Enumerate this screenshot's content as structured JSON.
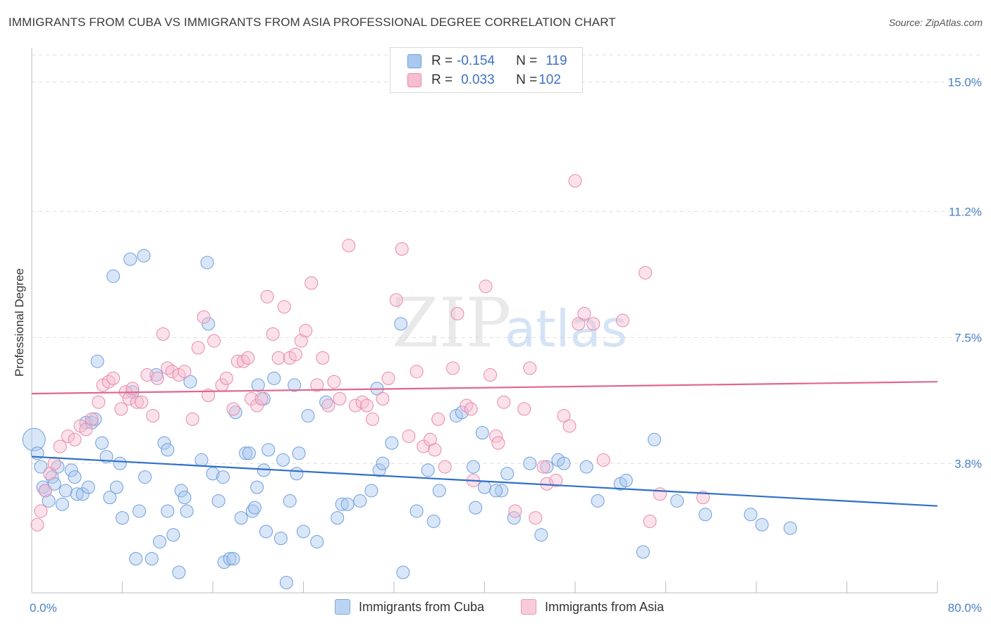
{
  "title": "IMMIGRANTS FROM CUBA VS IMMIGRANTS FROM ASIA PROFESSIONAL DEGREE CORRELATION CHART",
  "source": "Source: ZipAtlas.com",
  "watermark": {
    "zip": "ZIP",
    "atlas": "atlas"
  },
  "legend": {
    "rows": [
      {
        "r_label": "R =",
        "r_value": "-0.154",
        "n_label": "N =",
        "n_value": "119",
        "color": "#a9c8f0",
        "border": "#6f9fdc"
      },
      {
        "r_label": "R =",
        "r_value": "0.033",
        "n_label": "N =",
        "n_value": "102",
        "color": "#f7bdd0",
        "border": "#e88aaa"
      }
    ]
  },
  "bottom_legend": [
    {
      "label": "Immigrants from Cuba",
      "color": "#bcd4f4",
      "border": "#7ea6dd"
    },
    {
      "label": "Immigrants from Asia",
      "color": "#f9cbd9",
      "border": "#e89ab3"
    }
  ],
  "chart_data": {
    "type": "scatter",
    "title": "IMMIGRANTS FROM CUBA VS IMMIGRANTS FROM ASIA PROFESSIONAL DEGREE CORRELATION CHART",
    "xlabel": "",
    "ylabel": "Professional Degree",
    "xlim": [
      0,
      80
    ],
    "ylim": [
      0,
      15.8
    ],
    "x_tick_labels": [
      "0.0%",
      "80.0%"
    ],
    "y_ticks": [
      3.8,
      7.5,
      11.2,
      15.0
    ],
    "y_tick_labels": [
      "3.8%",
      "7.5%",
      "11.2%",
      "15.0%"
    ],
    "grid": true,
    "series": [
      {
        "name": "Immigrants from Cuba",
        "color": "#a9c8f0",
        "edge": "#6f9fdc",
        "trend": {
          "x": [
            0,
            80
          ],
          "y": [
            4.0,
            2.55
          ],
          "color": "#2f6fc9"
        },
        "points": [
          [
            0.2,
            4.5
          ],
          [
            0.5,
            4.1
          ],
          [
            0.8,
            3.7
          ],
          [
            1.0,
            3.1
          ],
          [
            1.2,
            3.0
          ],
          [
            1.5,
            2.7
          ],
          [
            1.8,
            3.4
          ],
          [
            2.0,
            3.2
          ],
          [
            2.3,
            3.7
          ],
          [
            2.7,
            2.6
          ],
          [
            3.0,
            3.0
          ],
          [
            3.5,
            3.6
          ],
          [
            3.8,
            3.4
          ],
          [
            4.0,
            2.9
          ],
          [
            4.5,
            2.9
          ],
          [
            5.0,
            3.1
          ],
          [
            4.8,
            5.0
          ],
          [
            5.3,
            5.0
          ],
          [
            5.6,
            5.1
          ],
          [
            5.8,
            6.8
          ],
          [
            6.2,
            4.4
          ],
          [
            6.6,
            4.0
          ],
          [
            6.9,
            2.8
          ],
          [
            7.2,
            9.3
          ],
          [
            7.5,
            3.1
          ],
          [
            7.8,
            3.8
          ],
          [
            8.0,
            2.2
          ],
          [
            8.7,
            9.8
          ],
          [
            9.2,
            1.0
          ],
          [
            9.5,
            2.4
          ],
          [
            9.9,
            9.9
          ],
          [
            10.0,
            3.4
          ],
          [
            10.6,
            1.0
          ],
          [
            11.0,
            6.4
          ],
          [
            11.3,
            1.5
          ],
          [
            11.7,
            4.4
          ],
          [
            12.0,
            2.4
          ],
          [
            12.0,
            4.2
          ],
          [
            12.5,
            1.7
          ],
          [
            13.0,
            0.6
          ],
          [
            13.2,
            3.0
          ],
          [
            13.5,
            2.8
          ],
          [
            13.7,
            2.4
          ],
          [
            14.0,
            6.2
          ],
          [
            15.0,
            3.9
          ],
          [
            15.5,
            9.7
          ],
          [
            15.6,
            7.9
          ],
          [
            16.0,
            3.5
          ],
          [
            16.5,
            2.7
          ],
          [
            16.9,
            3.4
          ],
          [
            17.0,
            0.9
          ],
          [
            17.5,
            1.0
          ],
          [
            17.8,
            1.0
          ],
          [
            18.0,
            5.3
          ],
          [
            18.5,
            2.2
          ],
          [
            18.9,
            4.1
          ],
          [
            19.2,
            4.1
          ],
          [
            19.5,
            2.4
          ],
          [
            19.7,
            2.5
          ],
          [
            19.9,
            3.1
          ],
          [
            20.0,
            6.1
          ],
          [
            20.5,
            3.6
          ],
          [
            20.7,
            1.8
          ],
          [
            20.9,
            4.2
          ],
          [
            21.4,
            6.3
          ],
          [
            22.0,
            1.6
          ],
          [
            22.2,
            3.9
          ],
          [
            22.5,
            0.3
          ],
          [
            22.8,
            2.7
          ],
          [
            23.2,
            6.1
          ],
          [
            23.4,
            3.5
          ],
          [
            23.6,
            4.1
          ],
          [
            24.0,
            1.8
          ],
          [
            24.4,
            5.2
          ],
          [
            25.2,
            1.5
          ],
          [
            26.0,
            5.6
          ],
          [
            27.0,
            2.2
          ],
          [
            27.4,
            2.6
          ],
          [
            27.9,
            2.6
          ],
          [
            29.0,
            2.7
          ],
          [
            30.0,
            3.0
          ],
          [
            30.5,
            6.0
          ],
          [
            30.7,
            3.6
          ],
          [
            31.0,
            3.8
          ],
          [
            31.8,
            4.4
          ],
          [
            32.6,
            7.9
          ],
          [
            32.8,
            0.6
          ],
          [
            34.0,
            2.4
          ],
          [
            35.0,
            3.6
          ],
          [
            35.5,
            2.1
          ],
          [
            36.0,
            3.0
          ],
          [
            37.5,
            5.2
          ],
          [
            38.0,
            5.3
          ],
          [
            39.0,
            3.7
          ],
          [
            39.2,
            2.5
          ],
          [
            39.8,
            4.7
          ],
          [
            40.0,
            3.1
          ],
          [
            41.5,
            3.0
          ],
          [
            42.0,
            3.5
          ],
          [
            42.6,
            2.2
          ],
          [
            44.0,
            3.8
          ],
          [
            45.0,
            1.7
          ],
          [
            45.5,
            3.7
          ],
          [
            46.5,
            3.9
          ],
          [
            47.0,
            3.8
          ],
          [
            49.0,
            3.7
          ],
          [
            50.0,
            2.7
          ],
          [
            52.0,
            3.2
          ],
          [
            52.5,
            3.3
          ],
          [
            54.0,
            1.2
          ],
          [
            55.0,
            4.5
          ],
          [
            57.0,
            2.7
          ],
          [
            59.5,
            2.3
          ],
          [
            63.5,
            2.3
          ],
          [
            64.5,
            2.0
          ],
          [
            67.0,
            1.9
          ],
          [
            41.0,
            3.0
          ],
          [
            20.5,
            5.7
          ],
          [
            8.9,
            5.9
          ]
        ]
      },
      {
        "name": "Immigrants from Asia",
        "color": "#f7bdd0",
        "edge": "#e88aaa",
        "trend": {
          "x": [
            0,
            80
          ],
          "y": [
            5.85,
            6.2
          ],
          "color": "#e06690"
        },
        "points": [
          [
            0.5,
            2.0
          ],
          [
            0.8,
            2.4
          ],
          [
            1.2,
            3.0
          ],
          [
            1.6,
            3.5
          ],
          [
            2.0,
            3.8
          ],
          [
            2.5,
            4.3
          ],
          [
            3.2,
            4.6
          ],
          [
            3.8,
            4.5
          ],
          [
            4.3,
            4.9
          ],
          [
            4.8,
            4.8
          ],
          [
            5.3,
            5.1
          ],
          [
            5.9,
            5.6
          ],
          [
            6.3,
            6.1
          ],
          [
            6.8,
            6.2
          ],
          [
            7.2,
            6.3
          ],
          [
            7.9,
            5.4
          ],
          [
            8.3,
            5.9
          ],
          [
            8.6,
            5.7
          ],
          [
            8.9,
            6.0
          ],
          [
            9.3,
            5.6
          ],
          [
            9.7,
            5.6
          ],
          [
            10.2,
            6.4
          ],
          [
            10.7,
            5.2
          ],
          [
            11.1,
            6.3
          ],
          [
            11.6,
            7.6
          ],
          [
            12.0,
            6.6
          ],
          [
            12.4,
            6.5
          ],
          [
            13.0,
            6.4
          ],
          [
            13.5,
            6.5
          ],
          [
            14.2,
            5.1
          ],
          [
            14.7,
            7.2
          ],
          [
            15.2,
            8.1
          ],
          [
            15.6,
            5.8
          ],
          [
            16.1,
            7.4
          ],
          [
            16.8,
            6.1
          ],
          [
            17.2,
            6.3
          ],
          [
            17.8,
            5.4
          ],
          [
            18.2,
            6.8
          ],
          [
            18.7,
            6.8
          ],
          [
            19.1,
            6.9
          ],
          [
            19.4,
            5.7
          ],
          [
            19.9,
            5.5
          ],
          [
            20.3,
            5.7
          ],
          [
            20.8,
            8.7
          ],
          [
            21.3,
            7.6
          ],
          [
            21.8,
            6.9
          ],
          [
            22.3,
            8.4
          ],
          [
            22.8,
            6.9
          ],
          [
            23.3,
            7.0
          ],
          [
            23.8,
            7.4
          ],
          [
            24.2,
            7.7
          ],
          [
            24.7,
            9.1
          ],
          [
            25.2,
            6.1
          ],
          [
            25.7,
            6.9
          ],
          [
            26.2,
            5.5
          ],
          [
            26.7,
            6.2
          ],
          [
            27.2,
            5.7
          ],
          [
            28.0,
            10.2
          ],
          [
            28.6,
            5.5
          ],
          [
            29.2,
            5.6
          ],
          [
            29.6,
            5.5
          ],
          [
            30.1,
            5.1
          ],
          [
            31.0,
            5.7
          ],
          [
            31.5,
            6.3
          ],
          [
            32.2,
            8.6
          ],
          [
            32.7,
            10.1
          ],
          [
            33.3,
            4.6
          ],
          [
            34.0,
            6.5
          ],
          [
            34.6,
            4.3
          ],
          [
            35.2,
            4.5
          ],
          [
            35.6,
            4.2
          ],
          [
            35.9,
            5.1
          ],
          [
            36.5,
            3.7
          ],
          [
            37.2,
            6.6
          ],
          [
            37.6,
            8.2
          ],
          [
            38.4,
            5.5
          ],
          [
            38.8,
            5.4
          ],
          [
            39.0,
            3.3
          ],
          [
            40.1,
            9.0
          ],
          [
            40.5,
            6.4
          ],
          [
            41.0,
            4.6
          ],
          [
            41.2,
            4.4
          ],
          [
            41.7,
            5.6
          ],
          [
            42.7,
            2.4
          ],
          [
            43.5,
            5.4
          ],
          [
            44.0,
            6.6
          ],
          [
            44.5,
            2.2
          ],
          [
            45.2,
            3.7
          ],
          [
            45.5,
            3.2
          ],
          [
            46.3,
            3.3
          ],
          [
            47.0,
            5.2
          ],
          [
            47.5,
            4.9
          ],
          [
            48.0,
            12.1
          ],
          [
            48.3,
            7.9
          ],
          [
            48.8,
            8.2
          ],
          [
            49.6,
            7.9
          ],
          [
            50.5,
            3.9
          ],
          [
            52.2,
            8.0
          ],
          [
            54.2,
            9.4
          ],
          [
            54.6,
            2.1
          ],
          [
            55.5,
            2.9
          ],
          [
            59.3,
            2.8
          ]
        ]
      }
    ]
  }
}
